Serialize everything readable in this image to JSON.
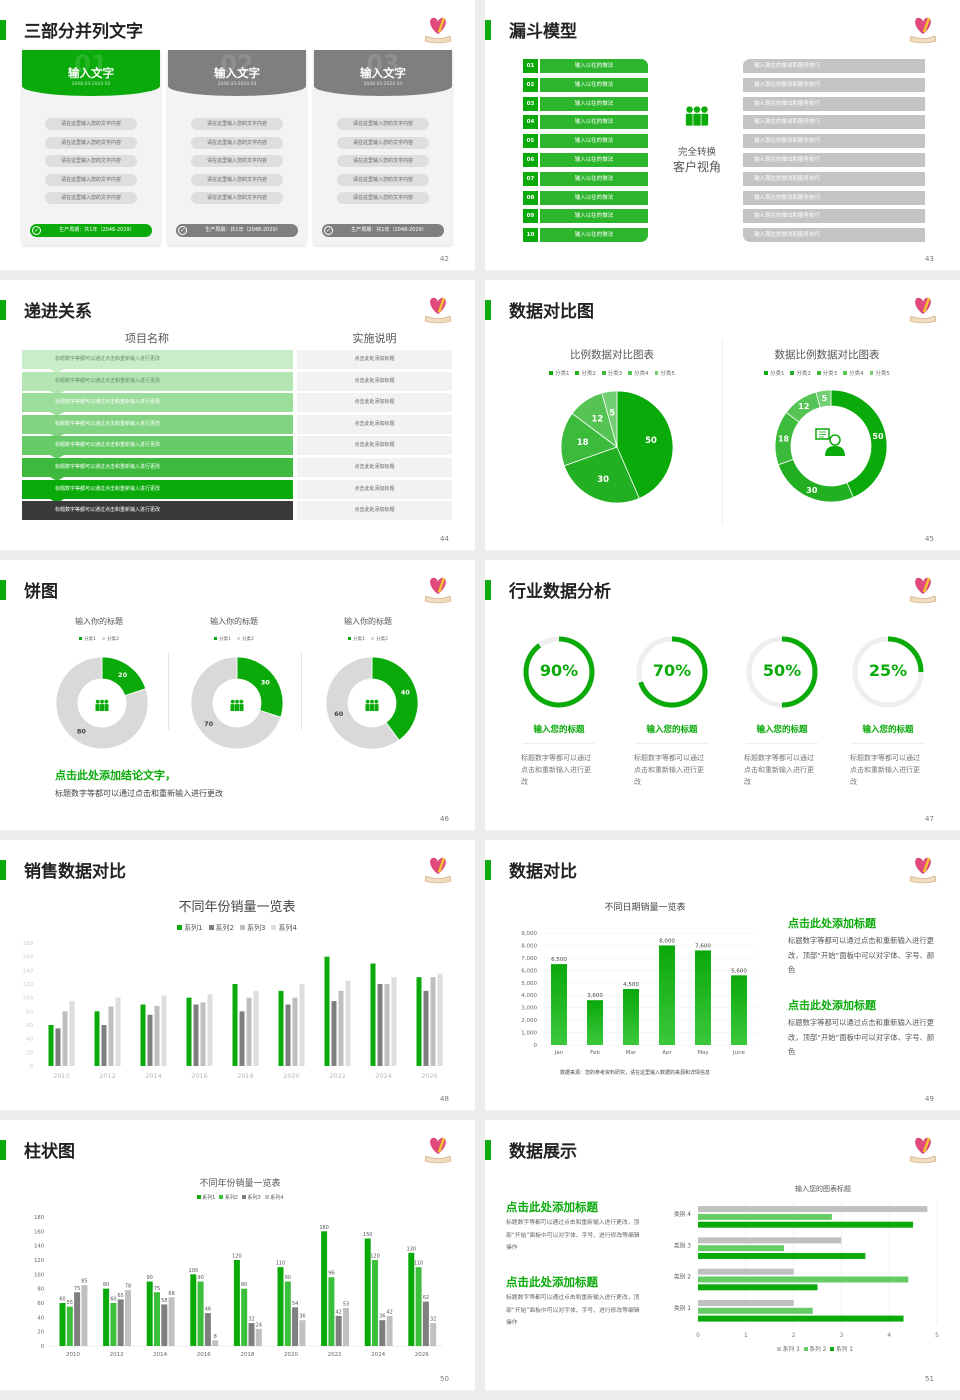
{
  "colors": {
    "green": "#0aaa0a",
    "green_light": "#2db52d",
    "gray": "#7f7f7f",
    "light_gray": "#c4c4c4",
    "dark": "#3a3a3a"
  },
  "s42": {
    "title": "三部分并列文字",
    "page": "42",
    "card_colors": [
      "#0aaa0a",
      "#7f7f7f",
      "#7f7f7f"
    ],
    "cards": [
      {
        "num": "01",
        "heading": "输入文字",
        "date": "2048.03-2020.03",
        "items": [
          "请在这里输入您的文字内容",
          "请在这里输入您的文字内容",
          "请在这里输入您的文字内容",
          "请在这里输入您的文字内容",
          "请在这里输入您的文字内容"
        ],
        "footer": "生产周期：共1年（2048-2029）"
      },
      {
        "num": "02",
        "heading": "输入文字",
        "date": "2048.03-2020.03",
        "items": [
          "请在这里输入您的文字内容",
          "请在这里输入您的文字内容",
          "请在这里输入您的文字内容",
          "请在这里输入您的文字内容",
          "请在这里输入您的文字内容"
        ],
        "footer": "生产周期：共1年（2048-2029）"
      },
      {
        "num": "03",
        "heading": "输入文字",
        "date": "2048.03-2020.03",
        "items": [
          "请在这里输入您的文字内容",
          "请在这里输入您的文字内容",
          "请在这里输入您的文字内容",
          "请在这里输入您的文字内容",
          "请在这里输入您的文字内容"
        ],
        "footer": "生产周期：共1年（2048-2029）"
      }
    ]
  },
  "s43": {
    "title": "漏斗模型",
    "page": "43",
    "left": [
      {
        "num": "01",
        "text": "输入以往的做法"
      },
      {
        "num": "02",
        "text": "输入以往的做法"
      },
      {
        "num": "03",
        "text": "输入以往的做法"
      },
      {
        "num": "04",
        "text": "输入以往的做法"
      },
      {
        "num": "05",
        "text": "输入以往的做法"
      },
      {
        "num": "06",
        "text": "输入以往的做法"
      },
      {
        "num": "07",
        "text": "输入以往的做法"
      },
      {
        "num": "08",
        "text": "输入以往的做法"
      },
      {
        "num": "09",
        "text": "输入以往的做法"
      },
      {
        "num": "10",
        "text": "输入以往的做法"
      }
    ],
    "right": [
      "输入现在的做法和服务技巧",
      "输入现在的做法和服务技巧",
      "输入现在的做法和服务技巧",
      "输入现在的做法和服务技巧",
      "输入现在的做法和服务技巧",
      "输入现在的做法和服务技巧",
      "输入现在的做法和服务技巧",
      "输入现在的做法和服务技巧",
      "输入现在的做法和服务技巧",
      "输入现在的做法和服务技巧"
    ],
    "center": [
      "完全转换",
      "客户视角"
    ]
  },
  "s44": {
    "title": "递进关系",
    "page": "44",
    "headers": [
      "项目名称",
      "实施说明"
    ],
    "row_colors": [
      "#c9edc9",
      "#b3e6b3",
      "#9bdd9b",
      "#82d482",
      "#66ca66",
      "#3dba3d",
      "#0aaa0a",
      "#3a3a3a"
    ],
    "rows": [
      {
        "left": "标题数字等都可以通过点击和重新输入进行更改",
        "right": "点击此处添加标题"
      },
      {
        "left": "标题数字等都可以通过点击和重新输入进行更改",
        "right": "点击此处添加标题"
      },
      {
        "left": "标题数字等都可以通过点击和重新输入进行更改",
        "right": "点击此处添加标题"
      },
      {
        "left": "标题数字等都可以通过点击和重新输入进行更改",
        "right": "点击此处添加标题"
      },
      {
        "left": "标题数字等都可以通过点击和重新输入进行更改",
        "right": "点击此处添加标题"
      },
      {
        "left": "标题数字等都可以通过点击和重新输入进行更改",
        "right": "点击此处添加标题"
      },
      {
        "left": "标题数字等都可以通过点击和重新输入进行更改",
        "right": "点击此处添加标题"
      },
      {
        "left": "标题数字等都可以通过点击和重新输入进行更改",
        "right": "点击此处添加标题"
      }
    ]
  },
  "s45": {
    "title": "数据对比图",
    "page": "45"
  },
  "s46": {
    "title": "饼图",
    "page": "46",
    "conclusion": "点击此处添加结论文字，",
    "text": "标题数字等都可以通过点击和重新输入进行更改"
  },
  "s47": {
    "title": "行业数据分析",
    "page": "47",
    "items": [
      {
        "percent": 90,
        "label": "90%",
        "heading": "输入您的标题",
        "text": "标题数字等都可以通过点击和重新输入进行更改"
      },
      {
        "percent": 70,
        "label": "70%",
        "heading": "输入您的标题",
        "text": "标题数字等都可以通过点击和重新输入进行更改"
      },
      {
        "percent": 50,
        "label": "50%",
        "heading": "输入您的标题",
        "text": "标题数字等都可以通过点击和重新输入进行更改"
      },
      {
        "percent": 25,
        "label": "25%",
        "heading": "输入您的标题",
        "text": "标题数字等都可以通过点击和重新输入进行更改"
      }
    ]
  },
  "s48": {
    "title": "销售数据对比",
    "page": "48"
  },
  "s49": {
    "title": "数据对比",
    "page": "49",
    "source": "数据来源：您的参考资料研究，请在这里输入数据的来源和详情信息",
    "blocks": [
      {
        "heading": "点击此处添加标题",
        "text": "标题数字等都可以通过点击和重新输入进行更改，顶部“开始”面板中可以对字体、字号、颜色"
      },
      {
        "heading": "点击此处添加标题",
        "text": "标题数字等都可以通过点击和重新输入进行更改，顶部“开始”面板中可以对字体、字号、颜色"
      }
    ]
  },
  "s50": {
    "title": "柱状图",
    "page": "50"
  },
  "s51": {
    "title": "数据展示",
    "page": "51",
    "blocks": [
      {
        "heading": "点击此处添加标题",
        "text": "标题数字等都可以通过点击和重新输入进行更改，顶部“开始”面板中可以对字体、字号、进行修改等编辑操作"
      },
      {
        "heading": "点击此处添加标题",
        "text": "标题数字等都可以通过点击和重新输入进行更改，顶部“开始”面板中可以对字体、字号、进行修改等编辑操作"
      }
    ]
  },
  "chart_data": [
    {
      "type": "pie",
      "title": "比例数据对比图表",
      "categories": [
        "分类1",
        "分类2",
        "分类3",
        "分类4",
        "分类5"
      ],
      "values": [
        50,
        30,
        18,
        12,
        5
      ],
      "colors": [
        "#0aaa0a",
        "#22b022",
        "#3cba3c",
        "#55c455",
        "#72d072"
      ],
      "legend": "top"
    },
    {
      "type": "pie",
      "donut": true,
      "title": "数据比例数据对比图表",
      "categories": [
        "分类1",
        "分类2",
        "分类3",
        "分类4",
        "分类5"
      ],
      "values": [
        50,
        30,
        18,
        12,
        5
      ],
      "colors": [
        "#0aaa0a",
        "#22b022",
        "#3cba3c",
        "#55c455",
        "#72d072"
      ],
      "legend": "top"
    },
    {
      "type": "pie",
      "donut": true,
      "title": "输入你的标题",
      "categories": [
        "分类1",
        "分类2"
      ],
      "values": [
        20,
        80
      ],
      "colors": [
        "#0aaa0a",
        "#d9d9d9"
      ],
      "legend": "top"
    },
    {
      "type": "pie",
      "donut": true,
      "title": "输入你的标题",
      "categories": [
        "分类1",
        "分类2"
      ],
      "values": [
        30,
        70
      ],
      "colors": [
        "#0aaa0a",
        "#d9d9d9"
      ],
      "legend": "top"
    },
    {
      "type": "pie",
      "donut": true,
      "title": "输入你的标题",
      "categories": [
        "分类1",
        "分类2"
      ],
      "values": [
        40,
        60
      ],
      "colors": [
        "#0aaa0a",
        "#d9d9d9"
      ],
      "legend": "top"
    },
    {
      "type": "bar",
      "title": "不同年份销量一览表",
      "categories": [
        "2010",
        "2012",
        "2014",
        "2016",
        "2018",
        "2020",
        "2022",
        "2024",
        "2026"
      ],
      "series": [
        {
          "name": "系列1",
          "values": [
            60,
            80,
            90,
            100,
            120,
            110,
            160,
            150,
            130
          ],
          "color": "#0aaa0a"
        },
        {
          "name": "系列2",
          "values": [
            55,
            60,
            75,
            90,
            80,
            90,
            95,
            120,
            110
          ],
          "color": "#7f7f7f"
        },
        {
          "name": "系列3",
          "values": [
            80,
            87,
            88,
            93,
            100,
            100,
            110,
            120,
            130
          ],
          "color": "#bfbfbf"
        },
        {
          "name": "系列4",
          "values": [
            95,
            100,
            103,
            105,
            110,
            120,
            125,
            130,
            135
          ],
          "color": "#dedede"
        }
      ],
      "ylim": [
        0,
        180
      ],
      "yticks": [
        0,
        20,
        40,
        60,
        80,
        100,
        120,
        140,
        160,
        180
      ],
      "legend": "top",
      "grid": false
    },
    {
      "type": "bar",
      "title": "不同日期销量一览表",
      "categories": [
        "Jan",
        "Feb",
        "Mar",
        "Apr",
        "May",
        "June"
      ],
      "values": [
        6500,
        3600,
        4500,
        8000,
        7600,
        5600
      ],
      "data_labels": [
        "6,500",
        "3,600",
        "4,500",
        "8,000",
        "7,600",
        "5,600"
      ],
      "ylim": [
        0,
        9000
      ],
      "yticks": [
        "0",
        "1,000",
        "2,000",
        "3,000",
        "4,000",
        "5,000",
        "6,000",
        "7,000",
        "8,000",
        "9,000"
      ],
      "grid": true,
      "color": "#0aaa0a"
    },
    {
      "type": "bar",
      "title": "不同年份销量一览表",
      "categories": [
        "2010",
        "2012",
        "2014",
        "2016",
        "2018",
        "2020",
        "2022",
        "2024",
        "2026"
      ],
      "series": [
        {
          "name": "系列1",
          "values": [
            60,
            80,
            90,
            100,
            120,
            110,
            160,
            150,
            130
          ],
          "color": "#0aaa0a"
        },
        {
          "name": "系列2",
          "values": [
            55,
            60,
            75,
            90,
            80,
            90,
            96,
            120,
            110
          ],
          "color": "#3cc03c"
        },
        {
          "name": "系列3",
          "values": [
            75,
            65,
            58,
            46,
            32,
            54,
            42,
            36,
            62
          ],
          "color": "#7f7f7f"
        },
        {
          "name": "系列4",
          "values": [
            85,
            78,
            68,
            8,
            24,
            36,
            53,
            42,
            32
          ],
          "color": "#c0c0c0"
        }
      ],
      "ylim": [
        0,
        180
      ],
      "yticks": [
        0,
        20,
        40,
        60,
        80,
        100,
        120,
        140,
        160,
        180
      ],
      "legend": "top",
      "data_labels": true
    },
    {
      "type": "bar",
      "orientation": "horizontal",
      "title": "输入您的图表标题",
      "categories": [
        "类别 1",
        "类别 2",
        "类别 3",
        "类别 4"
      ],
      "series": [
        {
          "name": "系列 1",
          "values": [
            4.3,
            2.5,
            3.5,
            4.5
          ],
          "color": "#0aaa0a"
        },
        {
          "name": "系列 2",
          "values": [
            2.4,
            4.4,
            1.8,
            2.8
          ],
          "color": "#66cc66"
        },
        {
          "name": "系列 3",
          "values": [
            2,
            2,
            3,
            4.8
          ],
          "color": "#c0c0c0"
        }
      ],
      "xlim": [
        0,
        5
      ],
      "xticks": [
        0,
        1,
        2,
        3,
        4,
        5
      ],
      "legend": "bottom",
      "grid": true
    }
  ]
}
